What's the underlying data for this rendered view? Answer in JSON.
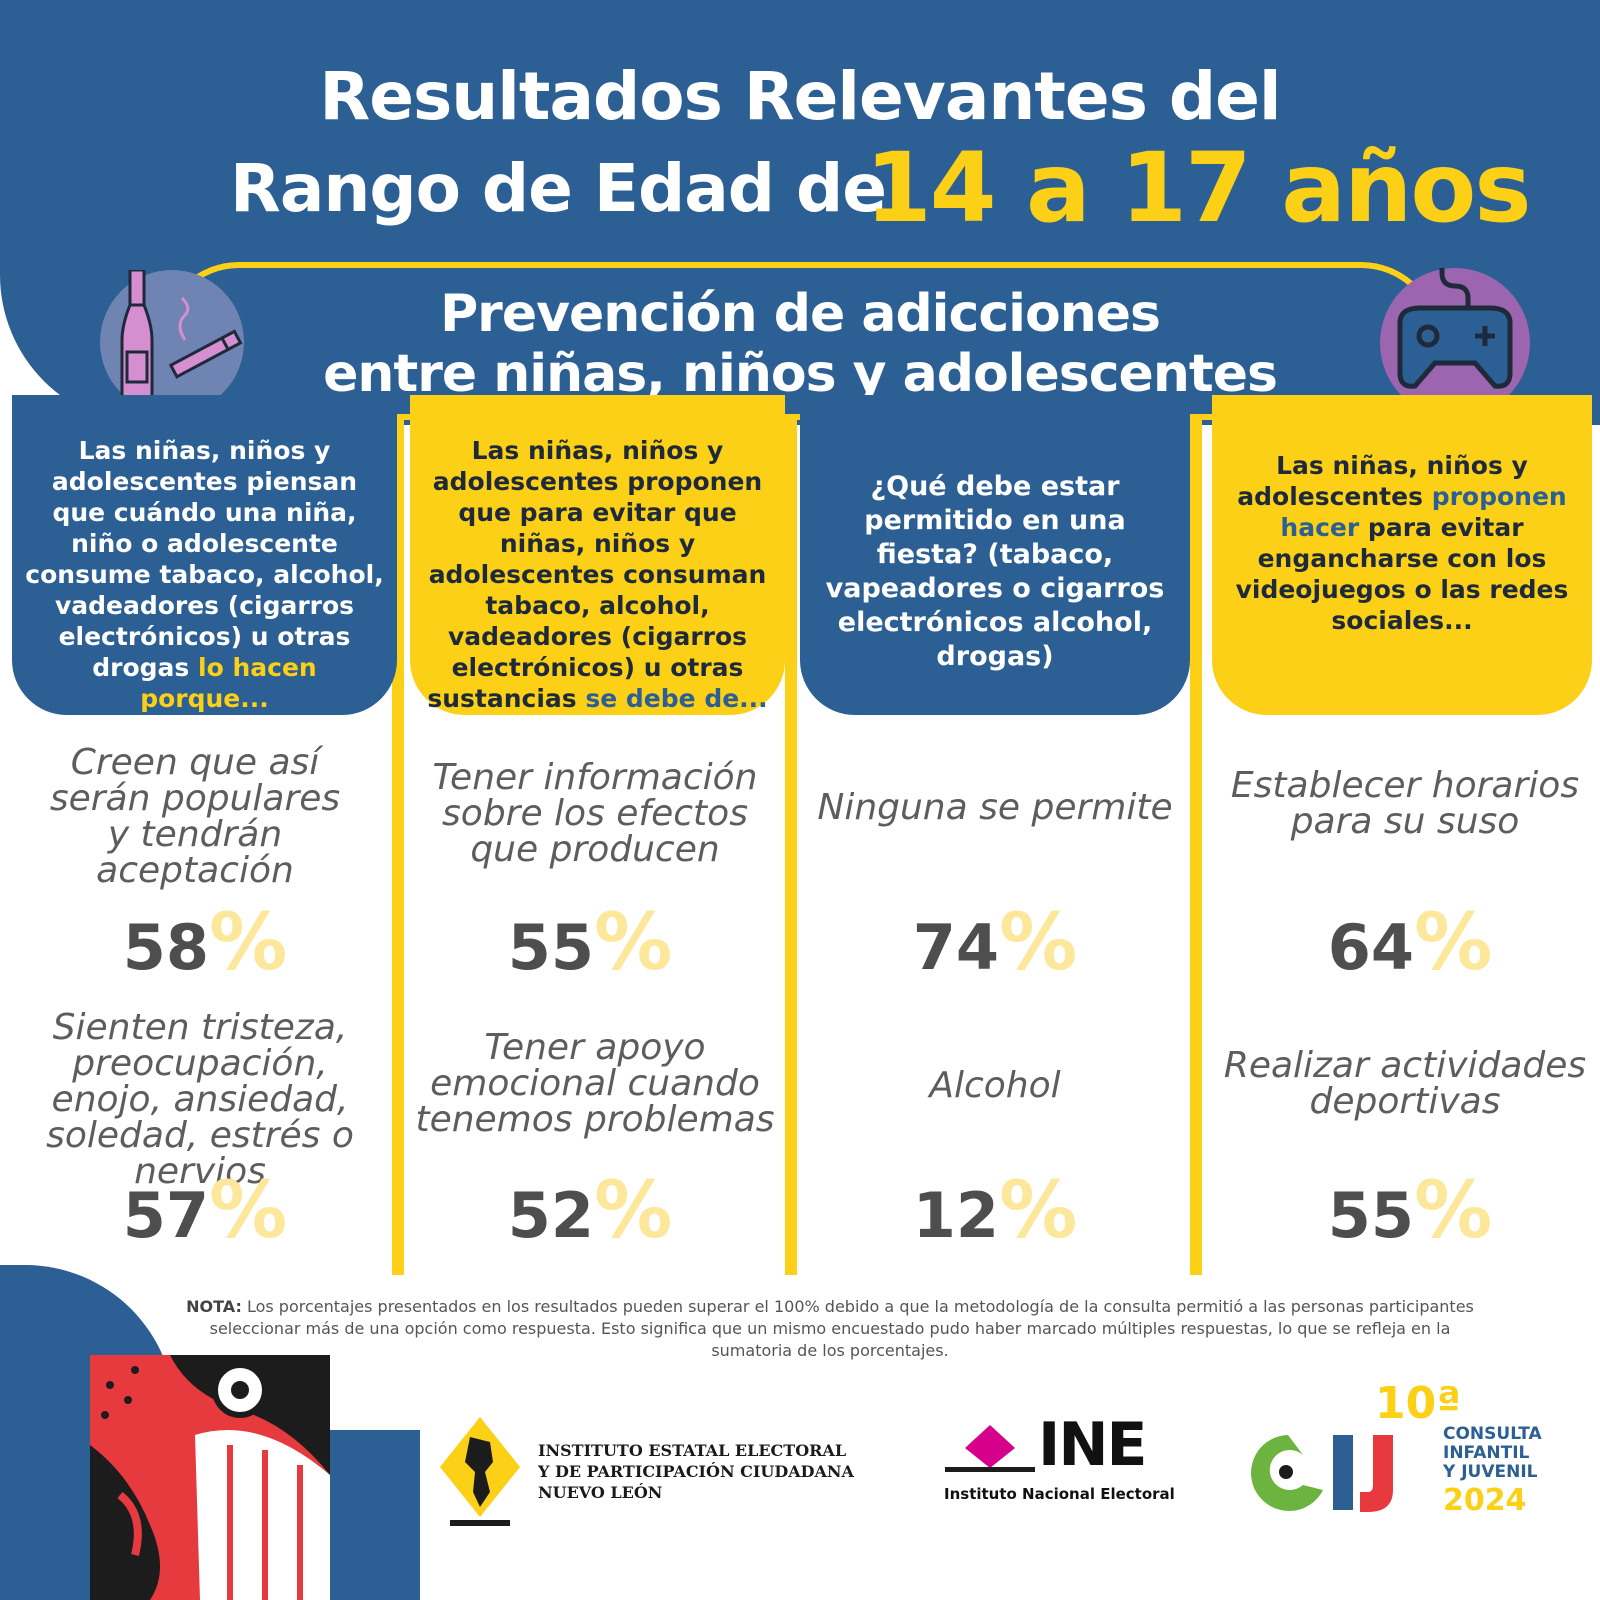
{
  "title": {
    "line1": "Resultados Relevantes del",
    "line2": "Rango de Edad de",
    "highlight": "14 a 17 años"
  },
  "subtitle": {
    "line1": "Prevención de adicciones",
    "line2": "entre niñas, niños y adolescentes"
  },
  "icons": {
    "left": "bottle-and-cigarette-icon",
    "right": "game-controller-icon"
  },
  "columns": [
    {
      "header": "Las niñas, niños y adolescentes piensan que cuándo una niña, niño o adolescente consume tabaco, alcohol, vadeadores (cigarros electrónicos) u otras drogas",
      "header_highlight": "lo hacen porque...",
      "answers": [
        {
          "text": "Creen que así serán populares y tendrán aceptación",
          "value": "58",
          "unit": "%"
        },
        {
          "text": "Sienten tristeza, preocupación, enojo, ansiedad, soledad, estrés o nervios",
          "value": "57",
          "unit": "%"
        }
      ]
    },
    {
      "header": "Las niñas, niños y adolescentes proponen que para evitar que niñas, niños y adolescentes consuman tabaco, alcohol, vadeadores (cigarros electrónicos) u otras sustancias",
      "header_highlight": "se debe de...",
      "answers": [
        {
          "text": "Tener información sobre los efectos que producen",
          "value": "55",
          "unit": "%"
        },
        {
          "text": "Tener apoyo emocional cuando tenemos problemas",
          "value": "52",
          "unit": "%"
        }
      ]
    },
    {
      "header": "¿Qué debe estar permitido en una fiesta? (tabaco, vapeadores o cigarros electrónicos alcohol, drogas)",
      "answers": [
        {
          "text": "Ninguna se permite",
          "value": "74",
          "unit": "%"
        },
        {
          "text": "Alcohol",
          "value": "12",
          "unit": "%"
        }
      ]
    },
    {
      "header_pre": "Las niñas, niños y adolescentes",
      "header_highlight": "proponen hacer",
      "header_post": "para evitar engancharse con los videojuegos o las redes sociales...",
      "answers": [
        {
          "text": "Establecer horarios para su suso",
          "value": "64",
          "unit": "%"
        },
        {
          "text": "Realizar actividades deportivas",
          "value": "55",
          "unit": "%"
        }
      ]
    }
  ],
  "note": {
    "label": "NOTA:",
    "text": "Los porcentajes presentados en los resultados pueden superar el 100% debido a que la metodología de la consulta permitió a las personas participantes seleccionar más de una opción como respuesta. Esto significa que un mismo encuestado pudo haber marcado múltiples respuestas, lo que se refleja en la sumatoria de los porcentajes."
  },
  "logos": {
    "iee": {
      "line1": "INSTITUTO ESTATAL ELECTORAL",
      "line2": "Y DE PARTICIPACIÓN CIUDADANA",
      "line3": "NUEVO LEÓN"
    },
    "ine": {
      "big": "INE",
      "small": "Instituto Nacional Electoral"
    },
    "cij": {
      "edition": "10ª",
      "line1": "CONSULTA",
      "line2": "INFANTIL",
      "line3": "Y JUVENIL",
      "year": "2024"
    }
  },
  "colors": {
    "blue": "#2c5f94",
    "yellow": "#fbd016",
    "percent_light": "#fde79a",
    "text_gray": "#5d5d5d"
  }
}
